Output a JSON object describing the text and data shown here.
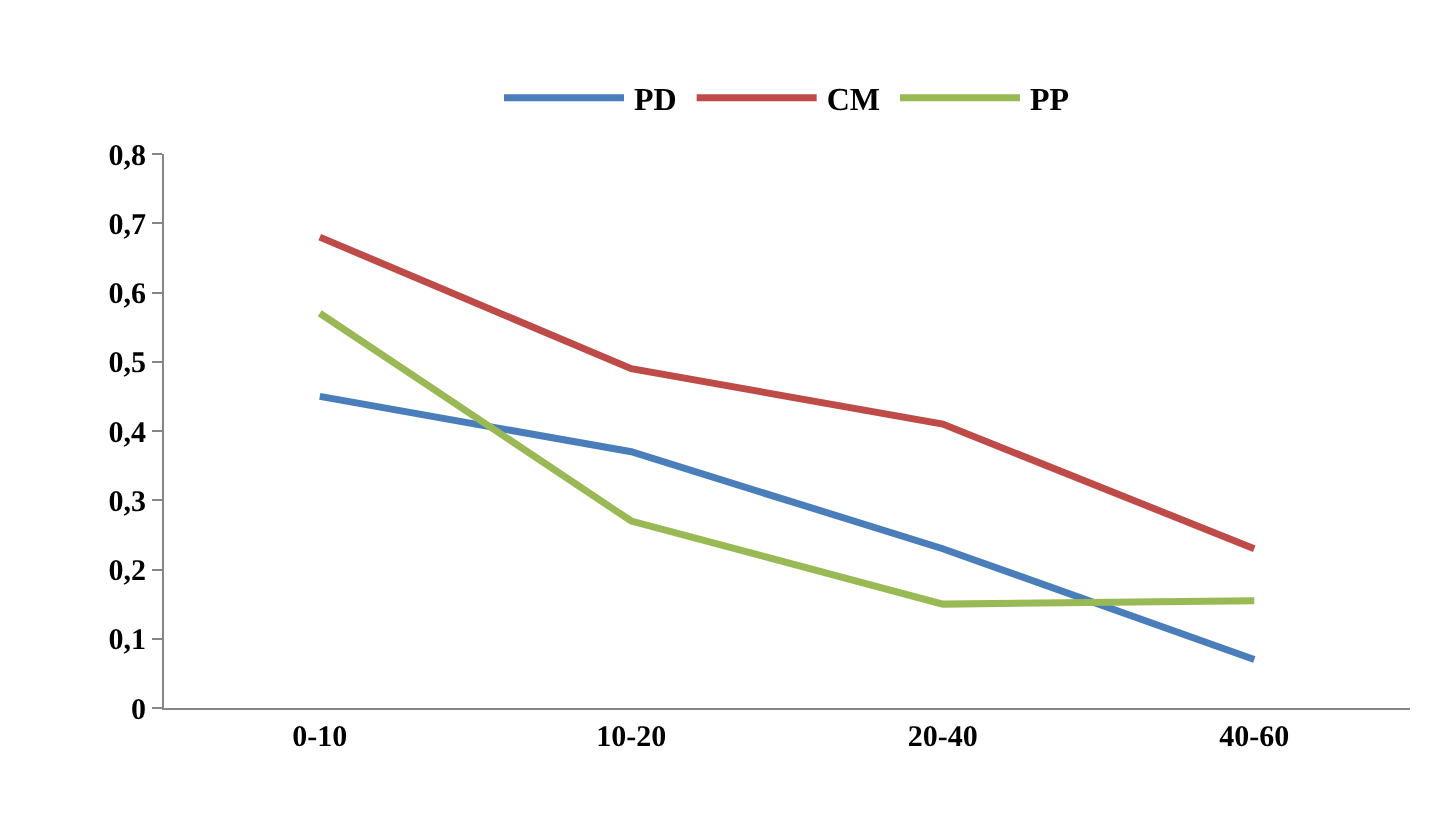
{
  "chart_data": {
    "type": "line",
    "categories": [
      "0-10",
      "10-20",
      "20-40",
      "40-60"
    ],
    "series": [
      {
        "name": "PD",
        "color": "#4a7ebb",
        "values": [
          0.45,
          0.37,
          0.23,
          0.07
        ]
      },
      {
        "name": "CM",
        "color": "#be4b48",
        "values": [
          0.68,
          0.49,
          0.41,
          0.23
        ]
      },
      {
        "name": "PP",
        "color": "#98b954",
        "values": [
          0.57,
          0.27,
          0.15,
          0.155
        ]
      }
    ],
    "ylim": [
      0,
      0.8
    ],
    "yticks": [
      {
        "value": 0,
        "label": "0"
      },
      {
        "value": 0.1,
        "label": "0,1"
      },
      {
        "value": 0.2,
        "label": "0,2"
      },
      {
        "value": 0.3,
        "label": "0,3"
      },
      {
        "value": 0.4,
        "label": "0,4"
      },
      {
        "value": 0.5,
        "label": "0,5"
      },
      {
        "value": 0.6,
        "label": "0,6"
      },
      {
        "value": 0.7,
        "label": "0,7"
      },
      {
        "value": 0.8,
        "label": "0,8"
      }
    ],
    "legend": "top",
    "marker": "none",
    "line_style": "solid"
  }
}
